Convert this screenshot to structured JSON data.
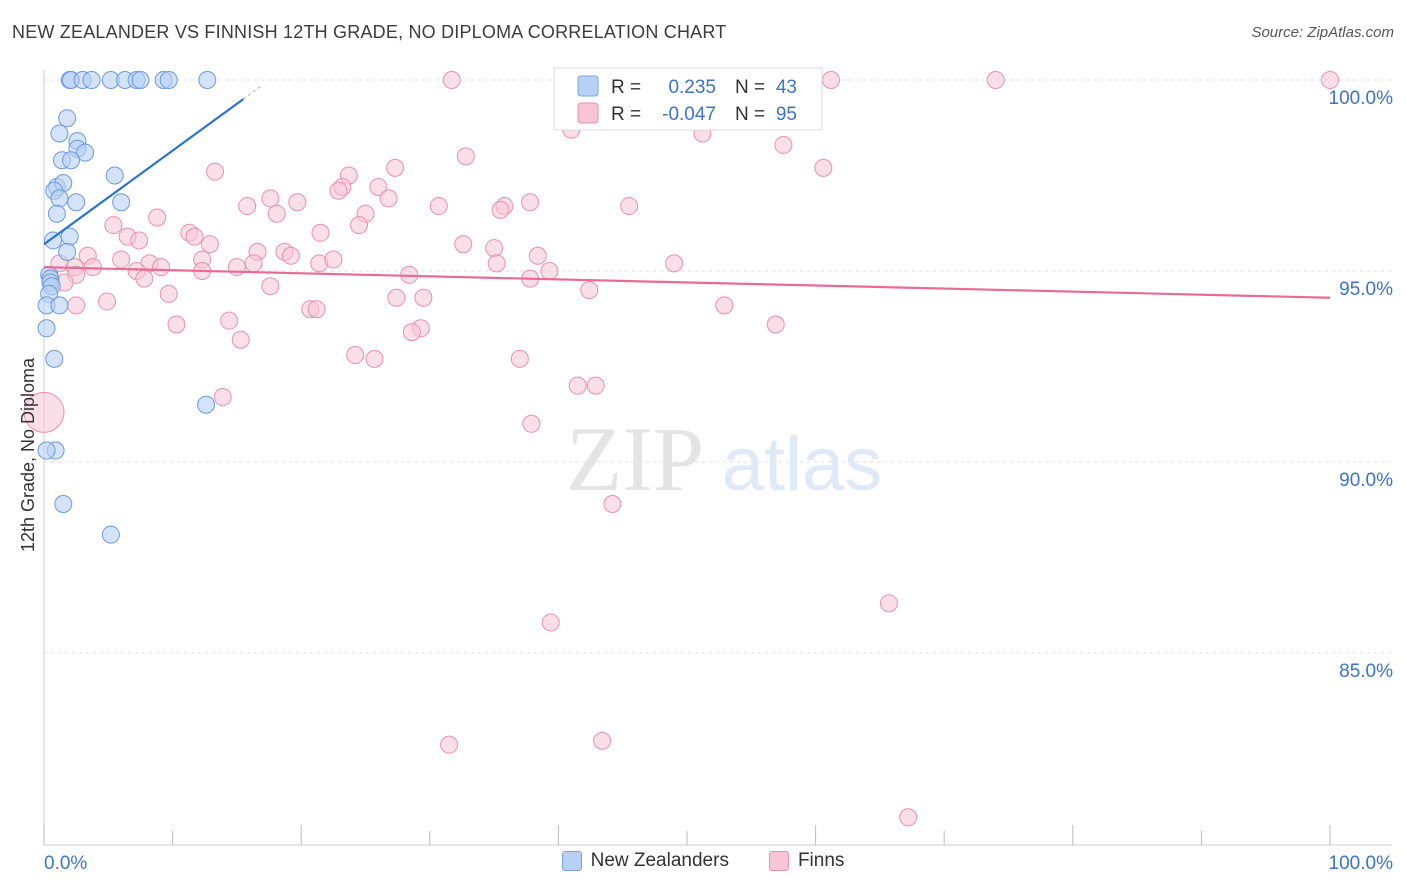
{
  "title": "NEW ZEALANDER VS FINNISH 12TH GRADE, NO DIPLOMA CORRELATION CHART",
  "source": "Source: ZipAtlas.com",
  "watermark": {
    "zip": "ZIP",
    "atlas": "atlas"
  },
  "colors": {
    "blue_fill": "#b8d0f4",
    "blue_stroke": "#6a9be0",
    "blue_line": "#2a72d0",
    "pink_fill": "#f8c4d6",
    "pink_stroke": "#ec8fb0",
    "pink_line": "#e86b96",
    "axis_label": "#3c73c8",
    "grid": "#dddddd"
  },
  "stats_legend": {
    "rows": [
      {
        "r_label": "R = ",
        "r_value": "0.235",
        "n_label": "N = ",
        "n_value": "43",
        "swatch": "blue"
      },
      {
        "r_label": "R = ",
        "r_value": "-0.047",
        "n_label": "N = ",
        "n_value": "95",
        "swatch": "pink"
      }
    ]
  },
  "chart_data": {
    "type": "scatter",
    "title": "NEW ZEALANDER VS FINNISH 12TH GRADE, NO DIPLOMA CORRELATION CHART",
    "xlabel": "",
    "ylabel": "12th Grade, No Diploma",
    "xlim": [
      0,
      100
    ],
    "ylim": [
      80.5,
      100.5
    ],
    "x_tick_labels": [
      "0.0%",
      "100.0%"
    ],
    "y_ticks": [
      100,
      95,
      90,
      85
    ],
    "y_tick_labels": [
      "100.0%",
      "95.0%",
      "90.0%",
      "85.0%"
    ],
    "grid": true,
    "legend_position": "bottom",
    "series": [
      {
        "name": "New Zealanders",
        "color": "#b8d0f4",
        "trend": {
          "x": [
            0,
            15.5
          ],
          "y": [
            95.7,
            99.5
          ]
        },
        "points": [
          [
            2.0,
            100.0
          ],
          [
            2.1,
            100.0
          ],
          [
            3.0,
            100.0
          ],
          [
            3.7,
            100.0
          ],
          [
            5.2,
            100.0
          ],
          [
            6.3,
            100.0
          ],
          [
            7.2,
            100.0
          ],
          [
            7.5,
            100.0
          ],
          [
            9.3,
            100.0
          ],
          [
            9.7,
            100.0
          ],
          [
            12.7,
            100.0
          ],
          [
            1.8,
            99.0
          ],
          [
            1.2,
            98.6
          ],
          [
            2.6,
            98.4
          ],
          [
            2.6,
            98.2
          ],
          [
            3.2,
            98.1
          ],
          [
            1.4,
            97.9
          ],
          [
            2.1,
            97.9
          ],
          [
            5.5,
            97.5
          ],
          [
            1.0,
            97.2
          ],
          [
            1.5,
            97.3
          ],
          [
            0.8,
            97.1
          ],
          [
            1.2,
            96.9
          ],
          [
            2.5,
            96.8
          ],
          [
            6.0,
            96.8
          ],
          [
            1.0,
            96.5
          ],
          [
            2.0,
            95.9
          ],
          [
            0.7,
            95.8
          ],
          [
            1.8,
            95.5
          ],
          [
            0.4,
            94.9
          ],
          [
            0.5,
            94.8
          ],
          [
            0.5,
            94.7
          ],
          [
            0.6,
            94.6
          ],
          [
            0.4,
            94.4
          ],
          [
            0.2,
            94.1
          ],
          [
            1.2,
            94.1
          ],
          [
            0.2,
            93.5
          ],
          [
            0.8,
            92.7
          ],
          [
            12.6,
            91.5
          ],
          [
            0.9,
            90.3
          ],
          [
            0.2,
            90.3
          ],
          [
            1.5,
            88.9
          ],
          [
            5.2,
            88.1
          ]
        ]
      },
      {
        "name": "Finns",
        "color": "#f8c4d6",
        "trend": {
          "x": [
            0,
            100
          ],
          "y": [
            95.1,
            94.3
          ]
        },
        "points": [
          [
            31.7,
            100.0
          ],
          [
            55.7,
            100.0
          ],
          [
            61.2,
            100.0
          ],
          [
            74.0,
            100.0
          ],
          [
            100.0,
            100.0
          ],
          [
            41.0,
            98.7
          ],
          [
            51.2,
            98.6
          ],
          [
            57.5,
            98.3
          ],
          [
            32.8,
            98.0
          ],
          [
            60.6,
            97.7
          ],
          [
            27.3,
            97.7
          ],
          [
            13.3,
            97.6
          ],
          [
            23.7,
            97.5
          ],
          [
            23.2,
            97.2
          ],
          [
            26.0,
            97.2
          ],
          [
            22.9,
            97.1
          ],
          [
            17.6,
            96.9
          ],
          [
            26.8,
            96.9
          ],
          [
            19.7,
            96.8
          ],
          [
            15.8,
            96.7
          ],
          [
            30.7,
            96.7
          ],
          [
            45.5,
            96.7
          ],
          [
            35.8,
            96.7
          ],
          [
            35.5,
            96.6
          ],
          [
            37.8,
            96.8
          ],
          [
            18.1,
            96.5
          ],
          [
            25.0,
            96.5
          ],
          [
            8.8,
            96.4
          ],
          [
            24.5,
            96.2
          ],
          [
            5.4,
            96.2
          ],
          [
            11.3,
            96.0
          ],
          [
            21.5,
            96.0
          ],
          [
            11.7,
            95.9
          ],
          [
            6.5,
            95.9
          ],
          [
            7.4,
            95.8
          ],
          [
            12.9,
            95.7
          ],
          [
            32.6,
            95.7
          ],
          [
            35.0,
            95.6
          ],
          [
            16.6,
            95.5
          ],
          [
            18.7,
            95.5
          ],
          [
            19.2,
            95.4
          ],
          [
            3.4,
            95.4
          ],
          [
            38.4,
            95.4
          ],
          [
            49.0,
            95.2
          ],
          [
            12.3,
            95.3
          ],
          [
            6.0,
            95.3
          ],
          [
            21.4,
            95.2
          ],
          [
            22.5,
            95.3
          ],
          [
            1.2,
            95.2
          ],
          [
            15.0,
            95.1
          ],
          [
            16.3,
            95.2
          ],
          [
            8.2,
            95.2
          ],
          [
            9.1,
            95.1
          ],
          [
            35.2,
            95.2
          ],
          [
            2.4,
            95.1
          ],
          [
            3.8,
            95.1
          ],
          [
            7.2,
            95.0
          ],
          [
            12.3,
            95.0
          ],
          [
            39.3,
            95.0
          ],
          [
            28.4,
            94.9
          ],
          [
            2.5,
            94.9
          ],
          [
            0.5,
            94.8
          ],
          [
            37.8,
            94.8
          ],
          [
            7.8,
            94.8
          ],
          [
            1.6,
            94.7
          ],
          [
            17.6,
            94.6
          ],
          [
            42.4,
            94.5
          ],
          [
            9.7,
            94.4
          ],
          [
            27.4,
            94.3
          ],
          [
            29.5,
            94.3
          ],
          [
            4.9,
            94.2
          ],
          [
            52.9,
            94.1
          ],
          [
            2.5,
            94.1
          ],
          [
            20.7,
            94.0
          ],
          [
            21.2,
            94.0
          ],
          [
            14.4,
            93.7
          ],
          [
            56.9,
            93.6
          ],
          [
            10.3,
            93.6
          ],
          [
            29.3,
            93.5
          ],
          [
            28.6,
            93.4
          ],
          [
            15.3,
            93.2
          ],
          [
            24.2,
            92.8
          ],
          [
            25.7,
            92.7
          ],
          [
            37.0,
            92.7
          ],
          [
            41.5,
            92.0
          ],
          [
            42.9,
            92.0
          ],
          [
            13.9,
            91.7
          ],
          [
            0.0,
            91.3
          ],
          [
            37.9,
            91.0
          ],
          [
            44.2,
            88.9
          ],
          [
            39.4,
            85.8
          ],
          [
            65.7,
            86.3
          ],
          [
            31.5,
            82.6
          ],
          [
            43.4,
            82.7
          ],
          [
            67.2,
            80.7
          ]
        ]
      }
    ]
  },
  "legend_bottom": [
    {
      "label": "New Zealanders",
      "swatch": "blue"
    },
    {
      "label": "Finns",
      "swatch": "pink"
    }
  ]
}
